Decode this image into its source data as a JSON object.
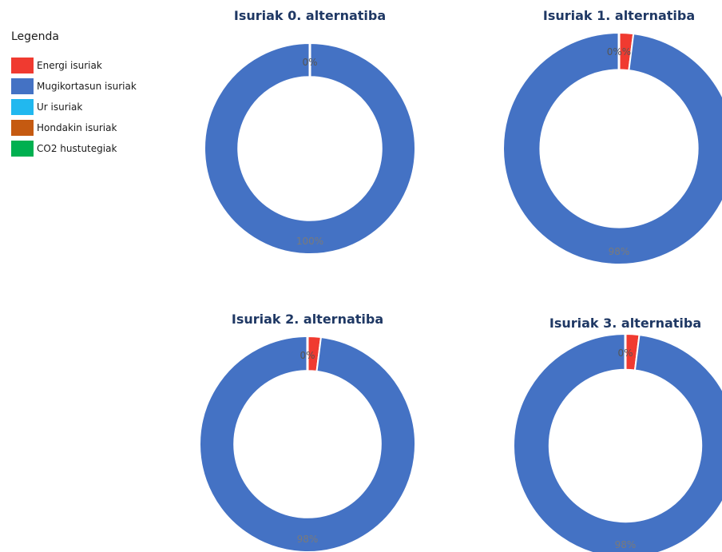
{
  "legend": {
    "title": "Legenda",
    "items": [
      {
        "label": "Energi isuriak",
        "color": "#f03a30"
      },
      {
        "label": "Mugikortasun isuriak",
        "color": "#4472c4"
      },
      {
        "label": "Ur isuriak",
        "color": "#21b8ef"
      },
      {
        "label": "Hondakin isuriak",
        "color": "#c55a11"
      },
      {
        "label": "CO2 hustutegiak",
        "color": "#00b050"
      }
    ]
  },
  "chart_data": [
    {
      "type": "pie",
      "title": "Isuriak 0. alternatiba",
      "categories": [
        "Energi isuriak",
        "Mugikortasun isuriak",
        "Ur isuriak",
        "Hondakin isuriak",
        "CO2 hustutegiak"
      ],
      "values": [
        0,
        100,
        0,
        0,
        0
      ],
      "small_label": "0%",
      "main_label": "100%"
    },
    {
      "type": "pie",
      "title": "Isuriak 1. alternatiba",
      "categories": [
        "Energi isuriak",
        "Mugikortasun isuriak",
        "Ur isuriak",
        "Hondakin isuriak",
        "CO2 hustutegiak"
      ],
      "values": [
        2,
        98,
        0,
        0,
        0
      ],
      "small_label": "0%%",
      "main_label": "98%"
    },
    {
      "type": "pie",
      "title": "Isuriak 2. alternatiba",
      "categories": [
        "Energi isuriak",
        "Mugikortasun isuriak",
        "Ur isuriak",
        "Hondakin isuriak",
        "CO2 hustutegiak"
      ],
      "values": [
        2,
        98,
        0,
        0,
        0
      ],
      "small_label": "0%",
      "main_label": "98%"
    },
    {
      "type": "pie",
      "title": "Isuriak 3. alternatiba",
      "categories": [
        "Energi isuriak",
        "Mugikortasun isuriak",
        "Ur isuriak",
        "Hondakin isuriak",
        "CO2 hustutegiak"
      ],
      "values": [
        2,
        98,
        0,
        0,
        0
      ],
      "small_label": "0%",
      "main_label": "98%"
    }
  ]
}
